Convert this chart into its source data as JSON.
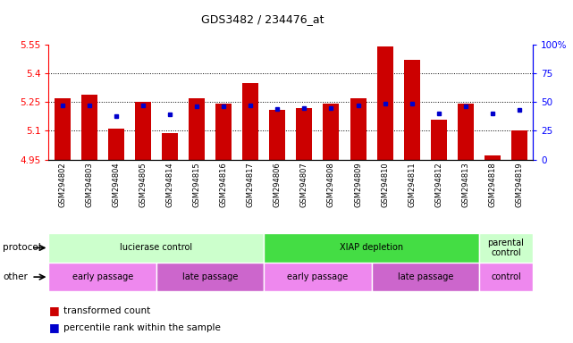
{
  "title": "GDS3482 / 234476_at",
  "samples": [
    "GSM294802",
    "GSM294803",
    "GSM294804",
    "GSM294805",
    "GSM294814",
    "GSM294815",
    "GSM294816",
    "GSM294817",
    "GSM294806",
    "GSM294807",
    "GSM294808",
    "GSM294809",
    "GSM294810",
    "GSM294811",
    "GSM294812",
    "GSM294813",
    "GSM294818",
    "GSM294819"
  ],
  "red_values": [
    5.27,
    5.29,
    5.11,
    5.25,
    5.09,
    5.27,
    5.24,
    5.35,
    5.21,
    5.22,
    5.24,
    5.27,
    5.54,
    5.47,
    5.16,
    5.24,
    4.97,
    5.1
  ],
  "blue_values": [
    47,
    47,
    38,
    47,
    39,
    46,
    46,
    47,
    44,
    45,
    45,
    47,
    49,
    49,
    40,
    46,
    40,
    43
  ],
  "ylim_left": [
    4.95,
    5.55
  ],
  "ylim_right": [
    0,
    100
  ],
  "yticks_left": [
    4.95,
    5.1,
    5.25,
    5.4,
    5.55
  ],
  "yticks_right": [
    0,
    25,
    50,
    75,
    100
  ],
  "ytick_labels_left": [
    "4.95",
    "5.1",
    "5.25",
    "5.4",
    "5.55"
  ],
  "ytick_labels_right": [
    "0",
    "25",
    "50",
    "75",
    "100%"
  ],
  "bar_color": "#cc0000",
  "blue_color": "#0000cc",
  "bar_base": 4.95,
  "protocol_groups": [
    {
      "label": "lucierase control",
      "start": 0,
      "end": 7,
      "color": "#ccffcc"
    },
    {
      "label": "XIAP depletion",
      "start": 8,
      "end": 15,
      "color": "#44dd44"
    },
    {
      "label": "parental\ncontrol",
      "start": 16,
      "end": 17,
      "color": "#ccffcc"
    }
  ],
  "other_groups": [
    {
      "label": "early passage",
      "start": 0,
      "end": 3,
      "color": "#ee88ee"
    },
    {
      "label": "late passage",
      "start": 4,
      "end": 7,
      "color": "#cc66cc"
    },
    {
      "label": "early passage",
      "start": 8,
      "end": 11,
      "color": "#ee88ee"
    },
    {
      "label": "late passage",
      "start": 12,
      "end": 15,
      "color": "#cc66cc"
    },
    {
      "label": "control",
      "start": 16,
      "end": 17,
      "color": "#ee88ee"
    }
  ],
  "protocol_label": "protocol",
  "other_label": "other",
  "legend_red": "transformed count",
  "legend_blue": "percentile rank within the sample",
  "figsize": [
    6.41,
    3.84
  ],
  "dpi": 100
}
